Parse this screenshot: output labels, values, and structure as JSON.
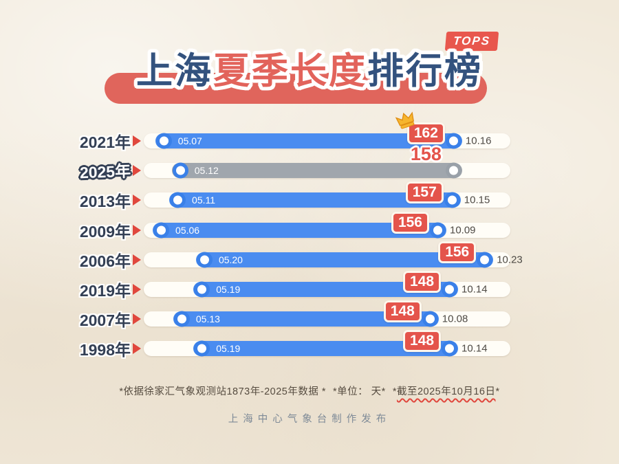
{
  "header": {
    "corner_badge": "TOPS",
    "title_prefix": "上海",
    "title_highlight": "夏季长度",
    "title_suffix": "排行榜"
  },
  "chart_data": {
    "type": "bar",
    "orientation": "horizontal",
    "title": "上海夏季长度排行榜",
    "unit": "天",
    "rows": [
      {
        "rank": 1,
        "year": "2021年",
        "start_date": "05.07",
        "end_date": "10.16",
        "days": 162,
        "highlight": false,
        "crown": true,
        "start_pct": 5.4,
        "end_pct": 84.6
      },
      {
        "rank": 2,
        "year": "2025年",
        "start_date": "05.12",
        "end_date": "",
        "days": 158,
        "highlight": true,
        "crown": false,
        "start_pct": 9.9,
        "end_pct": 84.6
      },
      {
        "rank": 3,
        "year": "2013年",
        "start_date": "05.11",
        "end_date": "10.15",
        "days": 157,
        "highlight": false,
        "crown": false,
        "start_pct": 9.2,
        "end_pct": 84.2
      },
      {
        "rank": 4,
        "year": "2009年",
        "start_date": "05.06",
        "end_date": "10.09",
        "days": 156,
        "highlight": false,
        "crown": false,
        "start_pct": 4.7,
        "end_pct": 80.3
      },
      {
        "rank": 5,
        "year": "2006年",
        "start_date": "05.20",
        "end_date": "10.23",
        "days": 156,
        "highlight": false,
        "crown": false,
        "start_pct": 16.5,
        "end_pct": 93.1
      },
      {
        "rank": 6,
        "year": "2019年",
        "start_date": "05.19",
        "end_date": "10.14",
        "days": 148,
        "highlight": false,
        "crown": false,
        "start_pct": 15.8,
        "end_pct": 83.5
      },
      {
        "rank": 7,
        "year": "2007年",
        "start_date": "05.13",
        "end_date": "10.08",
        "days": 148,
        "highlight": false,
        "crown": false,
        "start_pct": 10.3,
        "end_pct": 78.2
      },
      {
        "rank": 8,
        "year": "1998年",
        "start_date": "05.19",
        "end_date": "10.14",
        "days": 148,
        "highlight": false,
        "crown": false,
        "start_pct": 15.8,
        "end_pct": 83.5
      }
    ],
    "legend_position": "none",
    "grid": false
  },
  "footer": {
    "note_source": "*依据徐家汇气象观测站1873年-2025年数据 *",
    "note_unit": "*单位： 天*",
    "note_deadline_prefix": "*",
    "note_deadline_text": "截至2025年10月16日",
    "note_deadline_suffix": "*",
    "credit": "上海中心气象台制作发布"
  },
  "colors": {
    "background": "#f1e9da",
    "bar_blue": "#4a8cf0",
    "bar_gray": "#a0a6ad",
    "badge_red": "#e4544b",
    "accent_red": "#e0473d",
    "title_navy": "#33527e",
    "title_red": "#e2635b"
  }
}
